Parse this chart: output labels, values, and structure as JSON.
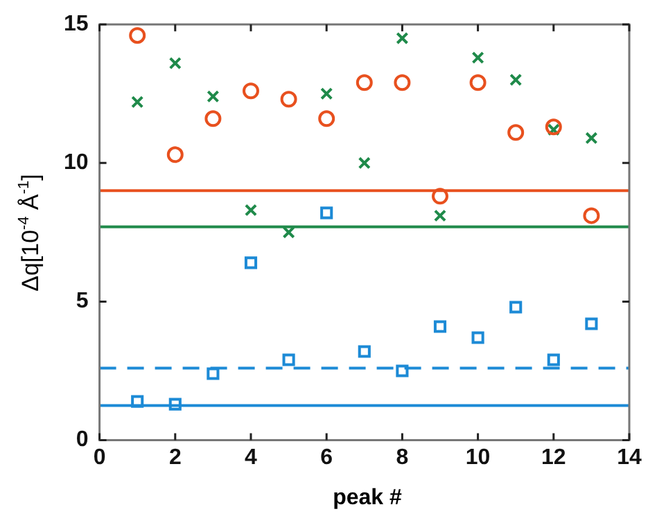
{
  "chart_data": {
    "type": "scatter",
    "xlabel": "peak #",
    "ylabel": "Δq[10$^{-4}$ Å$^{-1}$]",
    "x": [
      1,
      2,
      3,
      4,
      5,
      6,
      7,
      8,
      9,
      10,
      11,
      12,
      13
    ],
    "series": [
      {
        "color": "#e8501e",
        "marker": "circle",
        "values": [
          14.6,
          10.3,
          11.6,
          12.6,
          12.3,
          11.6,
          12.9,
          12.9,
          8.8,
          12.9,
          11.1,
          11.3,
          8.1
        ]
      },
      {
        "color": "#1f8a4a",
        "marker": "cross",
        "values": [
          12.2,
          13.6,
          12.4,
          8.3,
          7.5,
          12.5,
          10.0,
          14.5,
          8.1,
          13.8,
          13.0,
          11.2,
          10.9
        ]
      },
      {
        "color": "#1c8ad6",
        "marker": "square",
        "values": [
          1.4,
          1.3,
          2.4,
          6.4,
          2.9,
          8.2,
          3.2,
          2.5,
          4.1,
          3.7,
          4.8,
          2.9,
          4.2
        ]
      }
    ],
    "ref_lines": [
      {
        "axis": "y",
        "value": 9.0,
        "color": "#e8501e",
        "line_style": "solid"
      },
      {
        "axis": "y",
        "value": 7.7,
        "color": "#1f8a4a",
        "line_style": "solid"
      },
      {
        "axis": "y",
        "value": 2.6,
        "color": "#1c8ad6",
        "line_style": "dashed"
      },
      {
        "axis": "y",
        "value": 1.25,
        "color": "#1c8ad6",
        "line_style": "solid"
      }
    ],
    "xlim": [
      0,
      14
    ],
    "xticks": [
      0,
      2,
      4,
      6,
      8,
      10,
      12,
      14
    ],
    "ylim": [
      0,
      15
    ],
    "yticks": [
      0,
      5,
      10,
      15
    ],
    "grid": false,
    "legend": false
  }
}
